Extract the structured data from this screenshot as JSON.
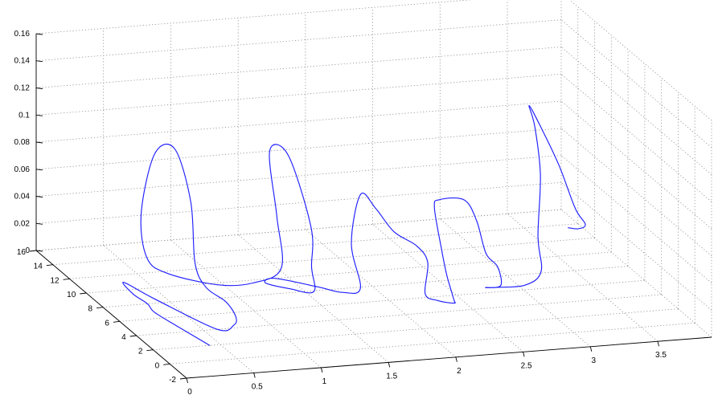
{
  "chart_data": {
    "type": "line",
    "projection": "3d",
    "title": "",
    "xlabel": "",
    "ylabel": "",
    "zlabel": "",
    "grid": true,
    "xlim": [
      0,
      3.9
    ],
    "ylim": [
      -2,
      16
    ],
    "zlim": [
      0,
      0.16
    ],
    "x_ticks": [
      "0",
      "0.5",
      "1",
      "1.5",
      "2",
      "2.5",
      "3",
      "3.5"
    ],
    "y_ticks": [
      "-2",
      "0",
      "2",
      "4",
      "6",
      "8",
      "10",
      "12",
      "14",
      "16"
    ],
    "z_ticks": [
      "0",
      "0.02",
      "0.04",
      "0.06",
      "0.08",
      "0.1",
      "0.12",
      "0.14",
      "0.16"
    ],
    "colors": {
      "series": "#1f1fff",
      "grid": "#8c8c8c",
      "axis": "#000000"
    },
    "series": [
      {
        "points": [
          [
            0.42,
            2.0,
            0.0
          ],
          [
            0.36,
            4.5,
            0.0
          ],
          [
            0.31,
            6.8,
            0.0
          ],
          [
            0.33,
            8.0,
            0.0
          ],
          [
            0.31,
            9.4,
            0.0
          ],
          [
            0.34,
            11.0,
            0.0
          ],
          [
            0.42,
            8.5,
            0.0
          ],
          [
            0.6,
            4.0,
            0.0
          ],
          [
            0.75,
            4.4,
            0.0
          ],
          [
            0.83,
            5.5,
            0.0
          ],
          [
            0.88,
            7.5,
            0.0
          ],
          [
            0.86,
            9.5,
            0.0
          ],
          [
            0.87,
            11.0,
            0.01
          ],
          [
            0.9,
            12.0,
            0.05
          ],
          [
            0.78,
            12.0,
            0.09
          ],
          [
            0.6,
            11.5,
            0.09
          ],
          [
            0.47,
            11.0,
            0.05
          ],
          [
            0.48,
            10.5,
            0.02
          ],
          [
            0.6,
            10.0,
            0.01
          ],
          [
            0.85,
            8.0,
            0.01
          ],
          [
            1.05,
            7.0,
            0.015
          ],
          [
            1.2,
            6.0,
            0.03
          ],
          [
            1.26,
            7.5,
            0.06
          ],
          [
            1.3,
            9.0,
            0.1
          ],
          [
            1.5,
            10.0,
            0.09
          ],
          [
            1.62,
            9.2,
            0.04
          ],
          [
            1.58,
            8.5,
            0.015
          ],
          [
            1.56,
            7.9,
            0.0
          ],
          [
            1.42,
            8.5,
            0.0
          ],
          [
            1.3,
            9.5,
            0.0
          ],
          [
            1.4,
            10.0,
            0.0
          ],
          [
            1.62,
            8.5,
            0.0
          ],
          [
            1.75,
            7.5,
            0.0
          ],
          [
            1.85,
            7.0,
            0.005
          ],
          [
            1.82,
            7.6,
            0.035
          ],
          [
            1.95,
            8.6,
            0.065
          ],
          [
            2.05,
            8.4,
            0.055
          ],
          [
            2.15,
            7.8,
            0.04
          ],
          [
            2.3,
            7.5,
            0.03
          ],
          [
            2.35,
            7.0,
            0.02
          ],
          [
            2.3,
            6.5,
            0.0
          ],
          [
            2.33,
            5.5,
            0.0
          ],
          [
            2.42,
            5.0,
            0.0
          ],
          [
            2.45,
            5.5,
            0.0
          ],
          [
            2.43,
            6.0,
            0.015
          ],
          [
            2.42,
            6.4,
            0.03
          ],
          [
            2.4,
            7.0,
            0.06
          ],
          [
            2.5,
            8.0,
            0.06
          ],
          [
            2.72,
            8.6,
            0.055
          ],
          [
            2.8,
            8.4,
            0.04
          ],
          [
            2.82,
            7.6,
            0.02
          ],
          [
            2.9,
            7.5,
            0.01
          ],
          [
            2.88,
            6.8,
            0.0
          ],
          [
            2.76,
            6.7,
            0.0
          ],
          [
            2.84,
            6.6,
            0.0
          ],
          [
            3.05,
            6.6,
            0.0
          ],
          [
            3.18,
            6.8,
            0.008
          ],
          [
            3.2,
            7.5,
            0.03
          ],
          [
            3.28,
            8.5,
            0.07
          ],
          [
            3.3,
            9.5,
            0.1
          ],
          [
            3.32,
            10.5,
            0.11
          ],
          [
            3.4,
            10.5,
            0.095
          ],
          [
            3.48,
            9.5,
            0.07
          ],
          [
            3.57,
            9.0,
            0.04
          ],
          [
            3.62,
            8.6,
            0.03
          ],
          [
            3.58,
            8.8,
            0.026
          ],
          [
            3.53,
            9.2,
            0.025
          ]
        ]
      }
    ]
  }
}
